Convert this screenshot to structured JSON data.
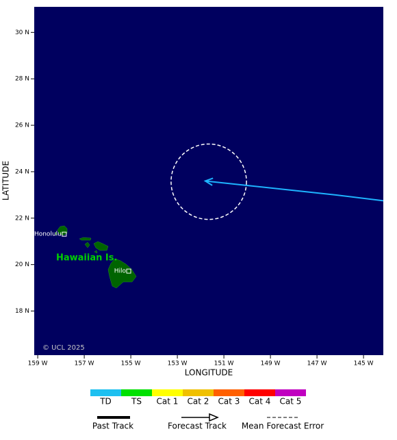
{
  "map": {
    "xlabel": "LONGITUDE",
    "ylabel": "LATITUDE",
    "xlim": [
      -159.15,
      -144.15
    ],
    "ylim": [
      16.1,
      31.1
    ],
    "xticks": [
      {
        "value": -159,
        "label": "159 W"
      },
      {
        "value": -157,
        "label": "157 W"
      },
      {
        "value": -155,
        "label": "155 W"
      },
      {
        "value": -153,
        "label": "153 W"
      },
      {
        "value": -151,
        "label": "151 W"
      },
      {
        "value": -149,
        "label": "149 W"
      },
      {
        "value": -147,
        "label": "147 W"
      },
      {
        "value": -145,
        "label": "145 W"
      }
    ],
    "yticks": [
      {
        "value": 18,
        "label": "18 N"
      },
      {
        "value": 20,
        "label": "20 N"
      },
      {
        "value": 22,
        "label": "22 N"
      },
      {
        "value": 24,
        "label": "24 N"
      },
      {
        "value": 26,
        "label": "26 N"
      },
      {
        "value": 28,
        "label": "28 N"
      },
      {
        "value": 30,
        "label": "30 N"
      }
    ],
    "copyright": "© UCL 2025",
    "region_label": "Hawaiian Is.",
    "places": [
      {
        "name": "Honolulu",
        "lon": -157.86,
        "lat": 21.31
      },
      {
        "name": "Hilo",
        "lon": -155.09,
        "lat": 19.72
      }
    ],
    "forecast_track": {
      "color": "#1eb4ff",
      "lon": [
        -144.15,
        -146.2,
        -151.8
      ],
      "lat": [
        22.75,
        23.0,
        23.6
      ]
    },
    "error_circle": {
      "lon": -151.65,
      "lat": 23.57,
      "radius_deg": 1.62
    }
  },
  "legend": {
    "categories": [
      {
        "name": "TD",
        "color": "#1ec0f0"
      },
      {
        "name": "TS",
        "color": "#00e000"
      },
      {
        "name": "Cat 1",
        "color": "#ffff00"
      },
      {
        "name": "Cat 2",
        "color": "#f0c000"
      },
      {
        "name": "Cat 3",
        "color": "#ff6000"
      },
      {
        "name": "Cat 4",
        "color": "#ff0000"
      },
      {
        "name": "Cat 5",
        "color": "#c000c0"
      }
    ],
    "items": [
      "Past Track",
      "Forecast Track",
      "Mean Forecast Error"
    ]
  }
}
